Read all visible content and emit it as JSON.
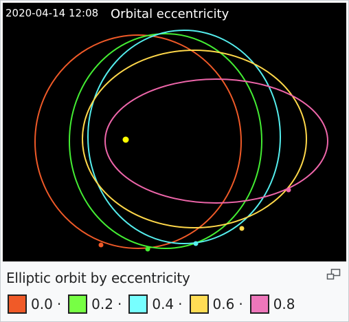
{
  "animation": {
    "timestamp": "2020-04-14 12:08",
    "title": "Orbital eccentricity",
    "background": "#000000",
    "star_color": "#ffff00",
    "orbits": [
      {
        "eccentricity": "0.0",
        "color": "#f05a28"
      },
      {
        "eccentricity": "0.2",
        "color": "#44ee33"
      },
      {
        "eccentricity": "0.4",
        "color": "#55eeee"
      },
      {
        "eccentricity": "0.6",
        "color": "#ffd84a"
      },
      {
        "eccentricity": "0.8",
        "color": "#ee66aa"
      }
    ]
  },
  "caption": {
    "text": "Elliptic orbit by eccentricity",
    "enlarge_icon": "enlarge-icon"
  },
  "legend": {
    "separator": "·",
    "items": [
      {
        "label": "0.0",
        "color": "#f05a28"
      },
      {
        "label": "0.2",
        "color": "#77ff44"
      },
      {
        "label": "0.4",
        "color": "#77ffff"
      },
      {
        "label": "0.6",
        "color": "#ffdd55"
      },
      {
        "label": "0.8",
        "color": "#ee77bb"
      }
    ]
  }
}
